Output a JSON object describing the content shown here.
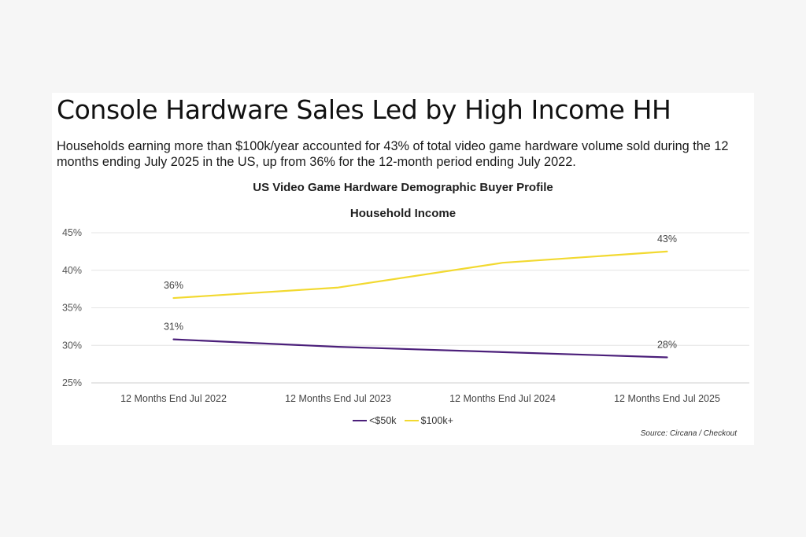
{
  "headline": "Console Hardware Sales Led by High Income HH",
  "lede": "Households earning more than $100k/year accounted for 43% of total video game hardware volume sold during the 12 months ending July 2025 in the US, up from 36% for the 12-month period ending July 2022.",
  "source": "Source: Circana / Checkout",
  "chart_data": {
    "type": "line",
    "title": "US Video Game Hardware Demographic Buyer Profile",
    "subtitle": "Household Income",
    "categories": [
      "12 Months End Jul 2022",
      "12 Months End Jul 2023",
      "12 Months End Jul 2024",
      "12 Months End Jul 2025"
    ],
    "y_ticks": [
      "25%",
      "30%",
      "35%",
      "40%",
      "45%"
    ],
    "ylim": [
      25,
      45
    ],
    "grid": true,
    "legend_position": "bottom",
    "series": [
      {
        "name": "<$50k",
        "color": "#4b1f7a",
        "values": [
          30.8,
          29.8,
          29.1,
          28.4
        ],
        "labels": [
          "31%",
          "",
          "",
          "28%"
        ]
      },
      {
        "name": "$100k+",
        "color": "#f2d930",
        "values": [
          36.3,
          37.7,
          41.0,
          42.5
        ],
        "labels": [
          "36%",
          "",
          "",
          "43%"
        ]
      }
    ]
  }
}
